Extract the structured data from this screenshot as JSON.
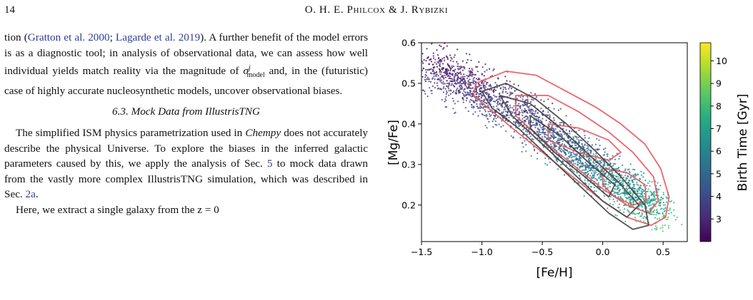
{
  "header": {
    "page_number": "14",
    "running_head": "O. H. E. Philcox & J. Rybizki"
  },
  "body": {
    "p1": {
      "pre": "tion (",
      "cite1": "Gratton et al. 2000",
      "sep": "; ",
      "cite2": "Lagarde et al. 2019",
      "mid": "). A further benefit of the model errors is as a diagnostic tool; in analysis of observational data, we can assess how well individual yields match reality via the magnitude of ",
      "sigma_symbol": "σ",
      "sigma_sup": "j",
      "sigma_sub": "model",
      "post": " and, in the (futuristic) case of highly accurate nucleosynthetic models, uncover observational biases."
    },
    "section_heading": "6.3. Mock Data from IllustrisTNG",
    "p2": {
      "pre": "The simplified ISM physics parametrization used in ",
      "chempy": "Chempy",
      "mid": " does not accurately describe the physical Universe. To explore the biases in the inferred galactic parameters caused by this, we apply the analysis of Sec. ",
      "ref1": "5",
      "mid2": " to mock data drawn from the vastly more complex IllustrisTNG simulation, which was described in Sec. ",
      "ref2": "2a",
      "post": "."
    },
    "p3": "Here, we extract a single galaxy from the z = 0"
  },
  "chart_data": {
    "type": "scatter",
    "title": "",
    "xlabel": "[Fe/H]",
    "ylabel": "[Mg/Fe]",
    "xlim": [
      -1.5,
      0.7
    ],
    "ylim": [
      0.11,
      0.6
    ],
    "xticks": [
      "−1.5",
      "−1.0",
      "−0.5",
      "0.0",
      "0.5"
    ],
    "xtick_values": [
      -1.5,
      -1.0,
      -0.5,
      0.0,
      0.5
    ],
    "yticks": [
      "0.2",
      "0.3",
      "0.4",
      "0.5",
      "0.6"
    ],
    "ytick_values": [
      0.2,
      0.3,
      0.4,
      0.5,
      0.6
    ],
    "grid": false,
    "scatter_ridge": [
      {
        "x": -1.45,
        "y": 0.54,
        "age": 2.6
      },
      {
        "x": -1.2,
        "y": 0.51,
        "age": 2.9
      },
      {
        "x": -1.0,
        "y": 0.47,
        "age": 3.3
      },
      {
        "x": -0.75,
        "y": 0.43,
        "age": 3.7
      },
      {
        "x": -0.5,
        "y": 0.39,
        "age": 4.2
      },
      {
        "x": -0.3,
        "y": 0.34,
        "age": 4.8
      },
      {
        "x": -0.1,
        "y": 0.3,
        "age": 5.4
      },
      {
        "x": 0.1,
        "y": 0.26,
        "age": 6.1
      },
      {
        "x": 0.3,
        "y": 0.22,
        "age": 6.8
      },
      {
        "x": 0.5,
        "y": 0.19,
        "age": 7.6
      }
    ],
    "contours": [
      {
        "name": "contours-red",
        "color": "#e8595f",
        "levels": [
          {
            "points": [
              [
                -1.05,
                0.5
              ],
              [
                -0.8,
                0.53
              ],
              [
                -0.55,
                0.52
              ],
              [
                -0.3,
                0.48
              ],
              [
                -0.05,
                0.44
              ],
              [
                0.15,
                0.4
              ],
              [
                0.35,
                0.35
              ],
              [
                0.48,
                0.29
              ],
              [
                0.55,
                0.22
              ],
              [
                0.52,
                0.17
              ],
              [
                0.4,
                0.15
              ],
              [
                0.2,
                0.17
              ],
              [
                0.0,
                0.21
              ],
              [
                -0.25,
                0.27
              ],
              [
                -0.5,
                0.33
              ],
              [
                -0.75,
                0.39
              ],
              [
                -0.95,
                0.44
              ],
              [
                -1.07,
                0.47
              ]
            ]
          },
          {
            "points": [
              [
                -0.72,
                0.47
              ],
              [
                -0.45,
                0.47
              ],
              [
                -0.2,
                0.43
              ],
              [
                0.05,
                0.38
              ],
              [
                0.25,
                0.33
              ],
              [
                0.42,
                0.27
              ],
              [
                0.46,
                0.21
              ],
              [
                0.38,
                0.18
              ],
              [
                0.2,
                0.2
              ],
              [
                0.0,
                0.24
              ],
              [
                -0.25,
                0.3
              ],
              [
                -0.5,
                0.36
              ],
              [
                -0.72,
                0.42
              ]
            ]
          },
          {
            "points": [
              [
                -0.45,
                0.4
              ],
              [
                -0.2,
                0.39
              ],
              [
                0.05,
                0.36
              ],
              [
                0.15,
                0.33
              ],
              [
                0.05,
                0.31
              ],
              [
                -0.2,
                0.33
              ],
              [
                -0.45,
                0.36
              ]
            ]
          },
          {
            "points": [
              [
                0.0,
                0.29
              ],
              [
                0.2,
                0.28
              ],
              [
                0.35,
                0.25
              ],
              [
                0.36,
                0.21
              ],
              [
                0.25,
                0.2
              ],
              [
                0.1,
                0.22
              ],
              [
                0.0,
                0.25
              ]
            ]
          }
        ]
      },
      {
        "name": "contours-black",
        "color": "#444444",
        "levels": [
          {
            "points": [
              [
                -1.0,
                0.48
              ],
              [
                -0.8,
                0.5
              ],
              [
                -0.55,
                0.46
              ],
              [
                -0.3,
                0.4
              ],
              [
                -0.05,
                0.33
              ],
              [
                0.15,
                0.27
              ],
              [
                0.35,
                0.2
              ],
              [
                0.38,
                0.15
              ],
              [
                0.25,
                0.14
              ],
              [
                0.05,
                0.18
              ],
              [
                -0.2,
                0.25
              ],
              [
                -0.45,
                0.32
              ],
              [
                -0.7,
                0.39
              ],
              [
                -0.92,
                0.44
              ]
            ]
          },
          {
            "points": [
              [
                -0.85,
                0.47
              ],
              [
                -0.6,
                0.45
              ],
              [
                -0.35,
                0.39
              ],
              [
                -0.1,
                0.32
              ],
              [
                0.12,
                0.26
              ],
              [
                0.3,
                0.2
              ],
              [
                0.2,
                0.17
              ],
              [
                0.0,
                0.21
              ],
              [
                -0.25,
                0.28
              ],
              [
                -0.5,
                0.35
              ],
              [
                -0.75,
                0.42
              ]
            ]
          },
          {
            "points": [
              [
                -0.6,
                0.42
              ],
              [
                -0.35,
                0.37
              ],
              [
                -0.1,
                0.3
              ],
              [
                0.1,
                0.25
              ],
              [
                0.05,
                0.22
              ],
              [
                -0.15,
                0.27
              ],
              [
                -0.4,
                0.33
              ],
              [
                -0.6,
                0.39
              ]
            ]
          }
        ]
      }
    ],
    "colorbar": {
      "label": "Birth Time [Gyr]",
      "min": 2.0,
      "max": 10.8,
      "ticks": [
        "3",
        "4",
        "5",
        "6",
        "7",
        "8",
        "9",
        "10"
      ],
      "tick_values": [
        3,
        4,
        5,
        6,
        7,
        8,
        9,
        10
      ],
      "colors": [
        "#440154",
        "#472c7a",
        "#3b518b",
        "#2c718e",
        "#21908d",
        "#27ad81",
        "#5cc863",
        "#aadc32",
        "#fde725"
      ]
    }
  }
}
